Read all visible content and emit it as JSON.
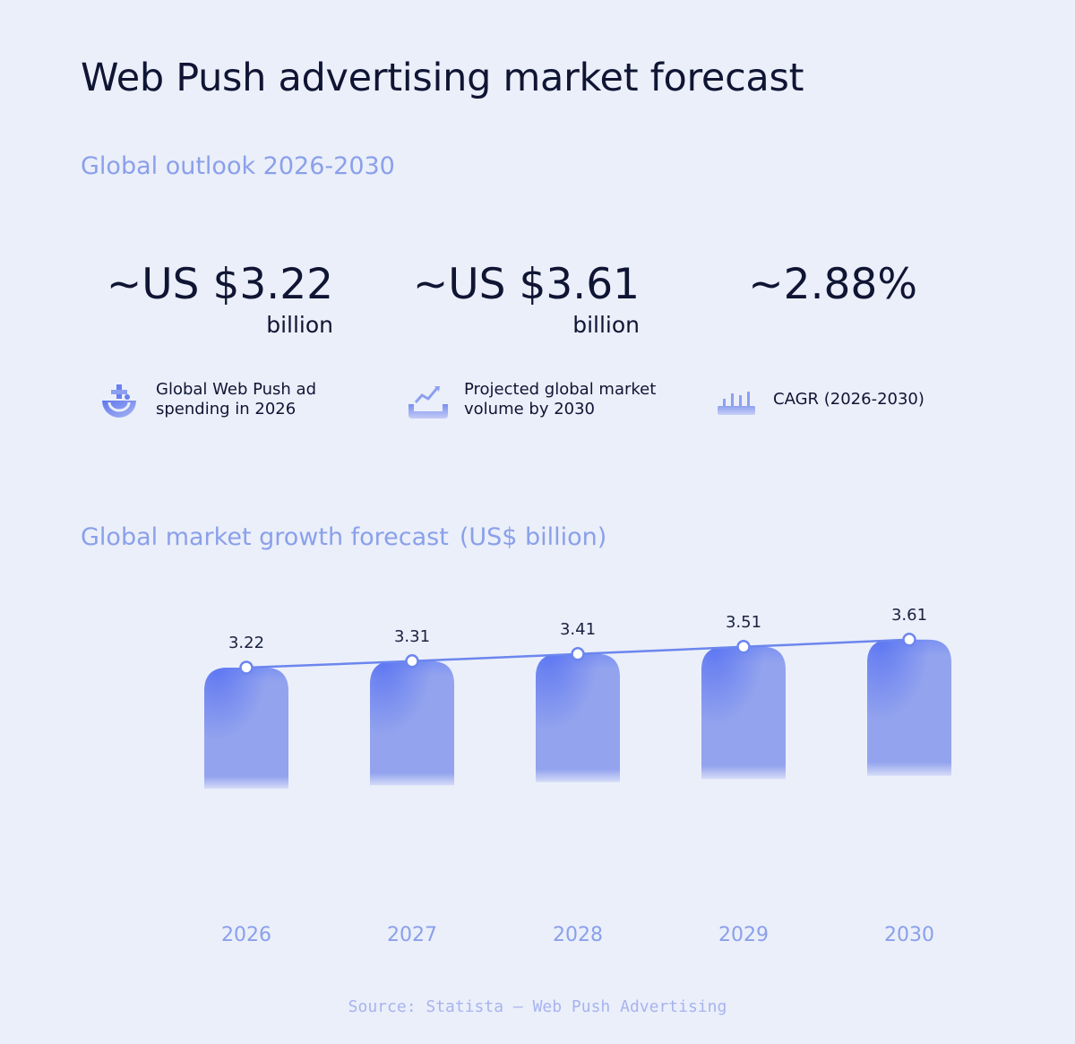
{
  "title": "Web Push advertising market forecast",
  "subtitle": "Global outlook 2026-2030",
  "stats": [
    {
      "value": "~US $3.22",
      "unit": "billion",
      "label_line1": "Global Web Push ad",
      "label_line2": "spending in 2026",
      "icon": "globe-icon"
    },
    {
      "value": "~US $3.61",
      "unit": "billion",
      "label_line1": "Projected global market",
      "label_line2": "volume by 2030",
      "icon": "trend-chart-icon"
    },
    {
      "value": "~2.88%",
      "unit": "",
      "label_line1": "CAGR (2026-2030)",
      "label_line2": "",
      "icon": "bar-chart-icon"
    }
  ],
  "chart_title": "Global market growth forecast",
  "chart_units": "(US$ billion)",
  "source": "Source: Statista – Web Push Advertising",
  "colors": {
    "background": "#ebeffa",
    "bar": "#93a3ee",
    "bar_accent": "#6a80f0",
    "line": "#6c86ee",
    "muted_text": "#8aa0ea",
    "dark_text": "#0f1533"
  },
  "chart_data": {
    "type": "bar",
    "categories": [
      "2026",
      "2027",
      "2028",
      "2029",
      "2030"
    ],
    "values": [
      3.22,
      3.31,
      3.41,
      3.51,
      3.61
    ],
    "data_labels": [
      "3.22",
      "3.31",
      "3.41",
      "3.51",
      "3.61"
    ],
    "overlay": "line",
    "title": "Global market growth forecast",
    "ylabel": "US$ billion",
    "grid": false,
    "legend": "none"
  }
}
